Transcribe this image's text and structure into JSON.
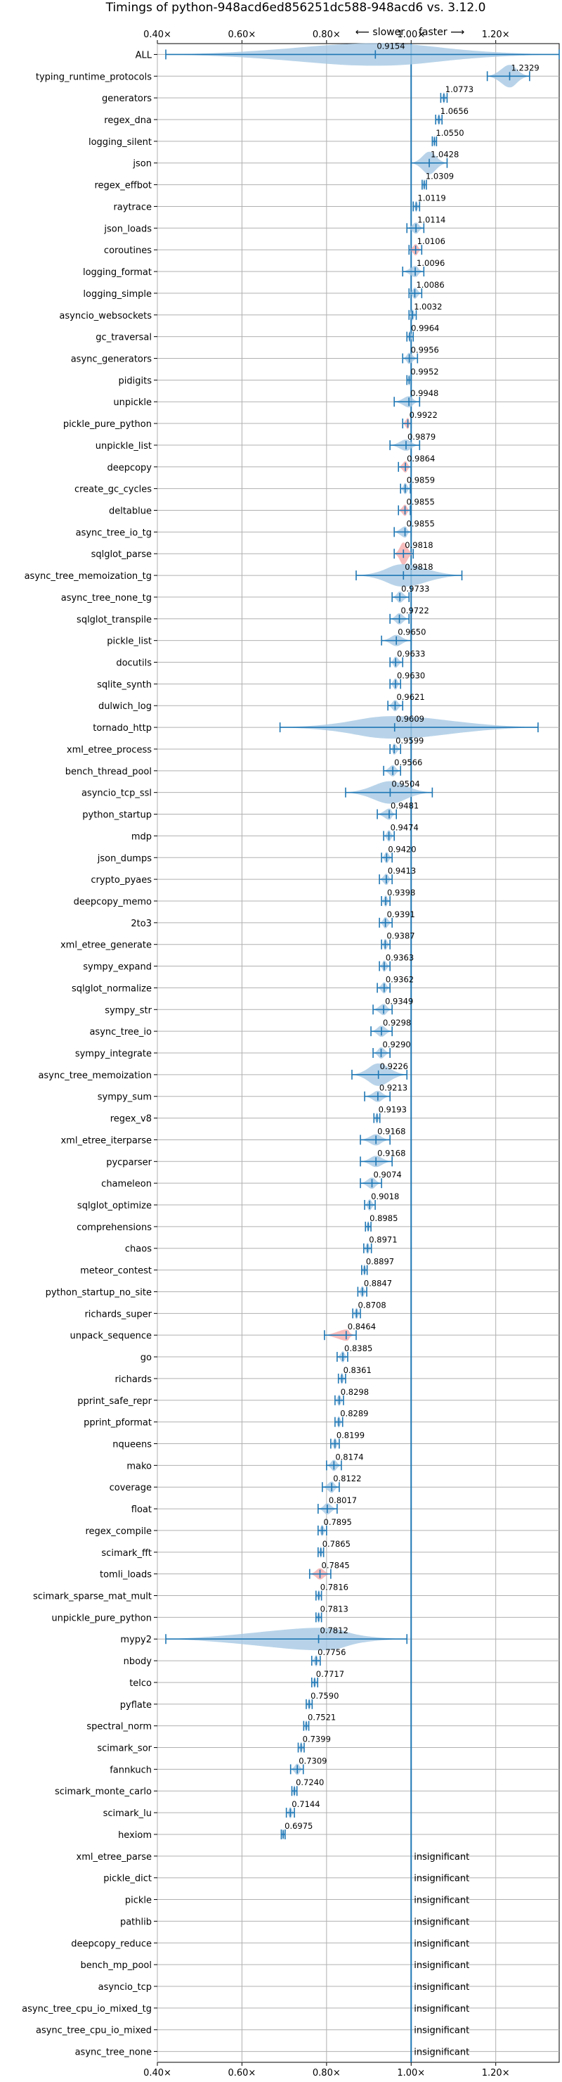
{
  "chart_data": {
    "type": "violin",
    "title": "Timings of python-948acd6ed856251dc588-948acd6 vs. 3.12.0",
    "direction_slower": "⟵ slower",
    "direction_faster": "faster ⟶",
    "xlim": [
      0.4,
      1.35
    ],
    "x_ticks": [
      {
        "value": 0.4,
        "label": "0.40×"
      },
      {
        "value": 0.6,
        "label": "0.60×"
      },
      {
        "value": 0.8,
        "label": "0.80×"
      },
      {
        "value": 1.0,
        "label": "1.00×"
      },
      {
        "value": 1.2,
        "label": "1.20×"
      }
    ],
    "reference_line": 1.0,
    "grid": true,
    "insignificant_label": "insignificant",
    "colors": {
      "violin": "#a6c8e4",
      "marker": "#1f77b4",
      "highlight": "#f4a6a6",
      "grid": "#b0b0b0"
    },
    "benchmarks": [
      {
        "name": "ALL",
        "value": 0.9154,
        "label": "0.9154",
        "min": 0.42,
        "max": 1.35,
        "width": "wide"
      },
      {
        "name": "typing_runtime_protocols",
        "value": 1.2329,
        "label": "1.2329",
        "min": 1.18,
        "max": 1.28,
        "width": "wide"
      },
      {
        "name": "generators",
        "value": 1.0773,
        "label": "1.0773",
        "min": 1.07,
        "max": 1.085
      },
      {
        "name": "regex_dna",
        "value": 1.0656,
        "label": "1.0656",
        "min": 1.058,
        "max": 1.073
      },
      {
        "name": "logging_silent",
        "value": 1.055,
        "label": "1.0550",
        "min": 1.05,
        "max": 1.06
      },
      {
        "name": "json",
        "value": 1.0428,
        "label": "1.0428",
        "min": 1.0,
        "max": 1.085,
        "width": "wide"
      },
      {
        "name": "regex_effbot",
        "value": 1.0309,
        "label": "1.0309",
        "min": 1.026,
        "max": 1.036
      },
      {
        "name": "raytrace",
        "value": 1.0119,
        "label": "1.0119",
        "min": 1.005,
        "max": 1.02
      },
      {
        "name": "json_loads",
        "value": 1.0114,
        "label": "1.0114",
        "min": 0.99,
        "max": 1.03
      },
      {
        "name": "coroutines",
        "value": 1.0106,
        "label": "1.0106",
        "min": 0.995,
        "max": 1.025,
        "highlight": true
      },
      {
        "name": "logging_format",
        "value": 1.0096,
        "label": "1.0096",
        "min": 0.98,
        "max": 1.03
      },
      {
        "name": "logging_simple",
        "value": 1.0086,
        "label": "1.0086",
        "min": 0.995,
        "max": 1.025
      },
      {
        "name": "asyncio_websockets",
        "value": 1.0032,
        "label": "1.0032",
        "min": 0.995,
        "max": 1.012
      },
      {
        "name": "gc_traversal",
        "value": 0.9964,
        "label": "0.9964",
        "min": 0.99,
        "max": 1.005
      },
      {
        "name": "async_generators",
        "value": 0.9956,
        "label": "0.9956",
        "min": 0.98,
        "max": 1.015
      },
      {
        "name": "pidigits",
        "value": 0.9952,
        "label": "0.9952",
        "min": 0.99,
        "max": 1.0
      },
      {
        "name": "unpickle",
        "value": 0.9948,
        "label": "0.9948",
        "min": 0.96,
        "max": 1.02
      },
      {
        "name": "pickle_pure_python",
        "value": 0.9922,
        "label": "0.9922",
        "min": 0.98,
        "max": 1.0,
        "highlight": true
      },
      {
        "name": "unpickle_list",
        "value": 0.9879,
        "label": "0.9879",
        "min": 0.95,
        "max": 1.02
      },
      {
        "name": "deepcopy",
        "value": 0.9864,
        "label": "0.9864",
        "min": 0.97,
        "max": 1.0,
        "highlight": true
      },
      {
        "name": "create_gc_cycles",
        "value": 0.9859,
        "label": "0.9859",
        "min": 0.975,
        "max": 0.998
      },
      {
        "name": "deltablue",
        "value": 0.9855,
        "label": "0.9855",
        "min": 0.97,
        "max": 0.998,
        "highlight": true
      },
      {
        "name": "async_tree_io_tg",
        "value": 0.9855,
        "label": "0.9855",
        "min": 0.96,
        "max": 1.0
      },
      {
        "name": "sqlglot_parse",
        "value": 0.9818,
        "label": "0.9818",
        "min": 0.96,
        "max": 1.005,
        "highlight": true,
        "width": "wide"
      },
      {
        "name": "async_tree_memoization_tg",
        "value": 0.9818,
        "label": "0.9818",
        "min": 0.87,
        "max": 1.12,
        "width": "wide"
      },
      {
        "name": "async_tree_none_tg",
        "value": 0.9733,
        "label": "0.9733",
        "min": 0.955,
        "max": 0.995
      },
      {
        "name": "sqlglot_transpile",
        "value": 0.9722,
        "label": "0.9722",
        "min": 0.95,
        "max": 0.995
      },
      {
        "name": "pickle_list",
        "value": 0.965,
        "label": "0.9650",
        "min": 0.93,
        "max": 1.0
      },
      {
        "name": "docutils",
        "value": 0.9633,
        "label": "0.9633",
        "min": 0.95,
        "max": 0.98
      },
      {
        "name": "sqlite_synth",
        "value": 0.963,
        "label": "0.9630",
        "min": 0.95,
        "max": 0.975
      },
      {
        "name": "dulwich_log",
        "value": 0.9621,
        "label": "0.9621",
        "min": 0.945,
        "max": 0.98
      },
      {
        "name": "tornado_http",
        "value": 0.9609,
        "label": "0.9609",
        "min": 0.69,
        "max": 1.3,
        "width": "wide"
      },
      {
        "name": "xml_etree_process",
        "value": 0.9599,
        "label": "0.9599",
        "min": 0.95,
        "max": 0.975
      },
      {
        "name": "bench_thread_pool",
        "value": 0.9566,
        "label": "0.9566",
        "min": 0.935,
        "max": 0.975
      },
      {
        "name": "asyncio_tcp_ssl",
        "value": 0.9504,
        "label": "0.9504",
        "min": 0.845,
        "max": 1.05,
        "width": "wide"
      },
      {
        "name": "python_startup",
        "value": 0.9481,
        "label": "0.9481",
        "min": 0.92,
        "max": 0.965
      },
      {
        "name": "mdp",
        "value": 0.9474,
        "label": "0.9474",
        "min": 0.935,
        "max": 0.96
      },
      {
        "name": "json_dumps",
        "value": 0.942,
        "label": "0.9420",
        "min": 0.93,
        "max": 0.955
      },
      {
        "name": "crypto_pyaes",
        "value": 0.9413,
        "label": "0.9413",
        "min": 0.925,
        "max": 0.955
      },
      {
        "name": "deepcopy_memo",
        "value": 0.9398,
        "label": "0.9398",
        "min": 0.93,
        "max": 0.95
      },
      {
        "name": "2to3",
        "value": 0.9391,
        "label": "0.9391",
        "min": 0.925,
        "max": 0.955
      },
      {
        "name": "xml_etree_generate",
        "value": 0.9387,
        "label": "0.9387",
        "min": 0.93,
        "max": 0.95
      },
      {
        "name": "sympy_expand",
        "value": 0.9363,
        "label": "0.9363",
        "min": 0.925,
        "max": 0.95
      },
      {
        "name": "sqlglot_normalize",
        "value": 0.9362,
        "label": "0.9362",
        "min": 0.92,
        "max": 0.95
      },
      {
        "name": "sympy_str",
        "value": 0.9349,
        "label": "0.9349",
        "min": 0.91,
        "max": 0.955
      },
      {
        "name": "async_tree_io",
        "value": 0.9298,
        "label": "0.9298",
        "min": 0.905,
        "max": 0.955
      },
      {
        "name": "sympy_integrate",
        "value": 0.929,
        "label": "0.9290",
        "min": 0.91,
        "max": 0.95
      },
      {
        "name": "async_tree_memoization",
        "value": 0.9226,
        "label": "0.9226",
        "min": 0.86,
        "max": 0.99,
        "width": "wide"
      },
      {
        "name": "sympy_sum",
        "value": 0.9213,
        "label": "0.9213",
        "min": 0.89,
        "max": 0.95
      },
      {
        "name": "regex_v8",
        "value": 0.9193,
        "label": "0.9193",
        "min": 0.912,
        "max": 0.926
      },
      {
        "name": "xml_etree_iterparse",
        "value": 0.9168,
        "label": "0.9168",
        "min": 0.88,
        "max": 0.95
      },
      {
        "name": "pycparser",
        "value": 0.9168,
        "label": "0.9168",
        "min": 0.88,
        "max": 0.955
      },
      {
        "name": "chameleon",
        "value": 0.9074,
        "label": "0.9074",
        "min": 0.88,
        "max": 0.93
      },
      {
        "name": "sqlglot_optimize",
        "value": 0.9018,
        "label": "0.9018",
        "min": 0.89,
        "max": 0.915
      },
      {
        "name": "comprehensions",
        "value": 0.8985,
        "label": "0.8985",
        "min": 0.892,
        "max": 0.905
      },
      {
        "name": "chaos",
        "value": 0.8971,
        "label": "0.8971",
        "min": 0.888,
        "max": 0.906
      },
      {
        "name": "meteor_contest",
        "value": 0.8897,
        "label": "0.8897",
        "min": 0.883,
        "max": 0.896
      },
      {
        "name": "python_startup_no_site",
        "value": 0.8847,
        "label": "0.8847",
        "min": 0.874,
        "max": 0.895
      },
      {
        "name": "richards_super",
        "value": 0.8708,
        "label": "0.8708",
        "min": 0.862,
        "max": 0.88
      },
      {
        "name": "unpack_sequence",
        "value": 0.8464,
        "label": "0.8464",
        "min": 0.795,
        "max": 0.87,
        "highlight": true
      },
      {
        "name": "go",
        "value": 0.8385,
        "label": "0.8385",
        "min": 0.825,
        "max": 0.85
      },
      {
        "name": "richards",
        "value": 0.8361,
        "label": "0.8361",
        "min": 0.828,
        "max": 0.845
      },
      {
        "name": "pprint_safe_repr",
        "value": 0.8298,
        "label": "0.8298",
        "min": 0.82,
        "max": 0.84
      },
      {
        "name": "pprint_pformat",
        "value": 0.8289,
        "label": "0.8289",
        "min": 0.82,
        "max": 0.838
      },
      {
        "name": "nqueens",
        "value": 0.8199,
        "label": "0.8199",
        "min": 0.81,
        "max": 0.83
      },
      {
        "name": "mako",
        "value": 0.8174,
        "label": "0.8174",
        "min": 0.8,
        "max": 0.835
      },
      {
        "name": "coverage",
        "value": 0.8122,
        "label": "0.8122",
        "min": 0.79,
        "max": 0.83
      },
      {
        "name": "float",
        "value": 0.8017,
        "label": "0.8017",
        "min": 0.78,
        "max": 0.825
      },
      {
        "name": "regex_compile",
        "value": 0.7895,
        "label": "0.7895",
        "min": 0.78,
        "max": 0.8
      },
      {
        "name": "scimark_fft",
        "value": 0.7865,
        "label": "0.7865",
        "min": 0.78,
        "max": 0.793
      },
      {
        "name": "tomli_loads",
        "value": 0.7845,
        "label": "0.7845",
        "min": 0.76,
        "max": 0.81,
        "highlight": true
      },
      {
        "name": "scimark_sparse_mat_mult",
        "value": 0.7816,
        "label": "0.7816",
        "min": 0.775,
        "max": 0.788
      },
      {
        "name": "unpickle_pure_python",
        "value": 0.7813,
        "label": "0.7813",
        "min": 0.775,
        "max": 0.788
      },
      {
        "name": "mypy2",
        "value": 0.7812,
        "label": "0.7812",
        "min": 0.42,
        "max": 0.99,
        "width": "wide"
      },
      {
        "name": "nbody",
        "value": 0.7756,
        "label": "0.7756",
        "min": 0.765,
        "max": 0.785
      },
      {
        "name": "telco",
        "value": 0.7717,
        "label": "0.7717",
        "min": 0.765,
        "max": 0.779
      },
      {
        "name": "pyflate",
        "value": 0.759,
        "label": "0.7590",
        "min": 0.752,
        "max": 0.766
      },
      {
        "name": "spectral_norm",
        "value": 0.7521,
        "label": "0.7521",
        "min": 0.746,
        "max": 0.758
      },
      {
        "name": "scimark_sor",
        "value": 0.7399,
        "label": "0.7399",
        "min": 0.733,
        "max": 0.747
      },
      {
        "name": "fannkuch",
        "value": 0.7309,
        "label": "0.7309",
        "min": 0.715,
        "max": 0.745
      },
      {
        "name": "scimark_monte_carlo",
        "value": 0.724,
        "label": "0.7240",
        "min": 0.718,
        "max": 0.73
      },
      {
        "name": "scimark_lu",
        "value": 0.7144,
        "label": "0.7144",
        "min": 0.705,
        "max": 0.724
      },
      {
        "name": "hexiom",
        "value": 0.6975,
        "label": "0.6975",
        "min": 0.693,
        "max": 0.702
      },
      {
        "name": "xml_etree_parse",
        "insignificant": true
      },
      {
        "name": "pickle_dict",
        "insignificant": true
      },
      {
        "name": "pickle",
        "insignificant": true
      },
      {
        "name": "pathlib",
        "insignificant": true
      },
      {
        "name": "deepcopy_reduce",
        "insignificant": true
      },
      {
        "name": "bench_mp_pool",
        "insignificant": true
      },
      {
        "name": "asyncio_tcp",
        "insignificant": true
      },
      {
        "name": "async_tree_cpu_io_mixed_tg",
        "insignificant": true
      },
      {
        "name": "async_tree_cpu_io_mixed",
        "insignificant": true
      },
      {
        "name": "async_tree_none",
        "insignificant": true
      }
    ]
  }
}
